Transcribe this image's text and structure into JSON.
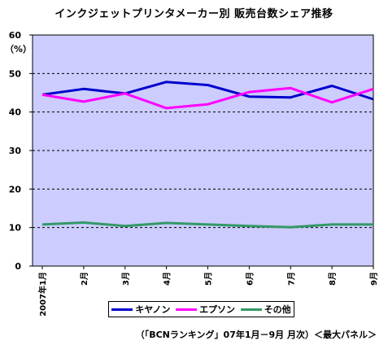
{
  "chart_data": {
    "type": "line",
    "title": "インクジェットプリンタメーカー別 販売台数シェア推移",
    "ylabel": "（%）",
    "ylim": [
      0,
      60
    ],
    "yticks": [
      0,
      10,
      20,
      30,
      40,
      50,
      60
    ],
    "categories": [
      "2007年1月",
      "2月",
      "3月",
      "4月",
      "5月",
      "6月",
      "7月",
      "8月",
      "9月"
    ],
    "series": [
      {
        "name": "キヤノン",
        "color": "#0000cc",
        "values": [
          44.5,
          46.0,
          44.8,
          47.8,
          47.0,
          44.0,
          43.8,
          46.8,
          43.3
        ]
      },
      {
        "name": "エプソン",
        "color": "#ff00ff",
        "values": [
          44.5,
          42.7,
          44.8,
          41.0,
          42.0,
          45.2,
          46.2,
          42.5,
          46.0
        ]
      },
      {
        "name": "その他",
        "color": "#339966",
        "values": [
          10.8,
          11.3,
          10.4,
          11.2,
          10.8,
          10.4,
          10.1,
          10.8,
          10.8
        ]
      }
    ],
    "grid": "horizontal dashed",
    "plot_background": "#ccccff",
    "legend_position": "bottom",
    "source": "（「BCNランキング」07年1月－9月 月次）＜最大パネル＞"
  }
}
